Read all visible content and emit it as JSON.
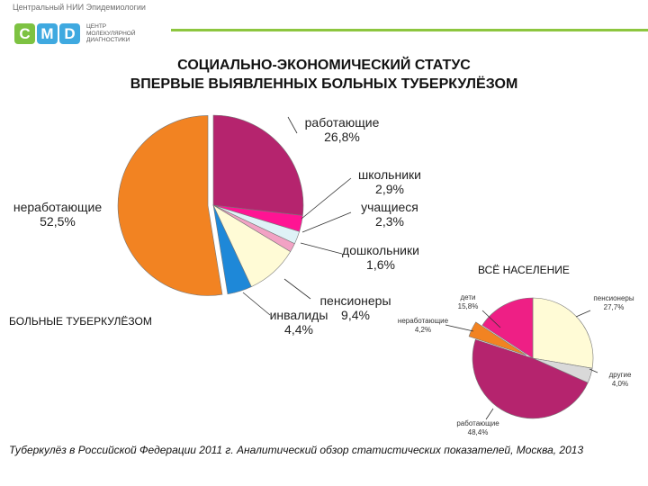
{
  "header": {
    "org_name": "Центральный НИИ Эпидемиологии",
    "logo_letters": [
      "C",
      "M",
      "D"
    ],
    "logo_colors": [
      "#7dc242",
      "#3fa9e0",
      "#3fa9e0"
    ],
    "logo_subtitle": "ЦЕНТР МОЛЕКУЛЯРНОЙ ДИАГНОСТИКИ",
    "accent_color": "#8dc63f"
  },
  "title_line1": "СОЦИАЛЬНО-ЭКОНОМИЧЕСКИЙ СТАТУС",
  "title_line2": "ВПЕРВЫЕ ВЫЯВЛЕННЫХ БОЛЬНЫХ ТУБЕРКУЛЁЗОМ",
  "chart_data": [
    {
      "type": "pie",
      "title": "БОЛЬНЫЕ ТУБЕРКУЛЁЗОМ",
      "unit": "%",
      "slices": [
        {
          "label": "работающие",
          "value": 26.8,
          "value_text": "26,8%",
          "color": "#b5246e"
        },
        {
          "label": "школьники",
          "value": 2.9,
          "value_text": "2,9%",
          "color": "#ff1493"
        },
        {
          "label": "учащиеся",
          "value": 2.3,
          "value_text": "2,3%",
          "color": "#dff2f7"
        },
        {
          "label": "дошкольники",
          "value": 1.6,
          "value_text": "1,6%",
          "color": "#f2a2c4"
        },
        {
          "label": "пенсионеры",
          "value": 9.4,
          "value_text": "9,4%",
          "color": "#fffbd6"
        },
        {
          "label": "инвалиды",
          "value": 4.4,
          "value_text": "4,4%",
          "color": "#1e88d8"
        },
        {
          "label": "неработающие",
          "value": 52.5,
          "value_text": "52,5%",
          "color": "#f28322"
        }
      ]
    },
    {
      "type": "pie",
      "title": "ВСЁ НАСЕЛЕНИЕ",
      "unit": "%",
      "slices": [
        {
          "label": "пенсионеры",
          "value": 27.7,
          "value_text": "27,7%",
          "color": "#fffbd6"
        },
        {
          "label": "другие",
          "value": 4.0,
          "value_text": "4,0%",
          "color": "#d9d9d9"
        },
        {
          "label": "работающие",
          "value": 48.4,
          "value_text": "48,4%",
          "color": "#b5246e"
        },
        {
          "label": "неработающие",
          "value": 4.2,
          "value_text": "4,2%",
          "color": "#f28322"
        },
        {
          "label": "дети",
          "value": 15.8,
          "value_text": "15,8%",
          "color": "#ee1f85"
        }
      ]
    }
  ],
  "footer": "Туберкулёз в Российской Федерации 2011 г. Аналитический обзор статистических показателей,  Москва, 2013"
}
